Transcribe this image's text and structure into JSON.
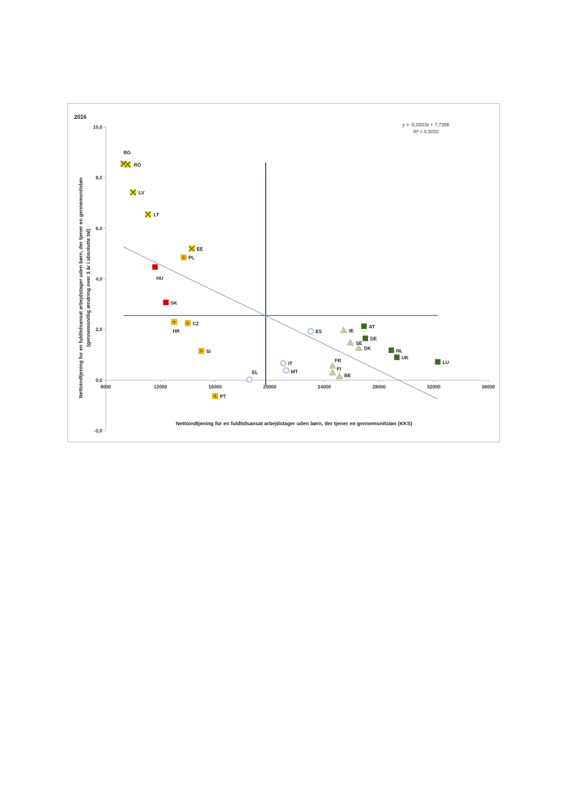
{
  "chart_data": {
    "type": "scatter",
    "title": "2016",
    "xlabel": "Nettoindtjening for en fuldtidsansat arbejdstager uden børn, der tjener en gennemsnitsløn (KKS)",
    "ylabel_line1": "Nettoindtjening for en fuldtidsansat arbejdstager uden børn, der tjener en gennemsnitsløn",
    "ylabel_line2": "(gennemsnitlig ændring over 3 år i absolutte tal)",
    "xlim": [
      8000,
      36000
    ],
    "ylim": [
      -2,
      10
    ],
    "x_ticks": [
      "8000",
      "12000",
      "16000",
      "20000",
      "24000",
      "28000",
      "32000",
      "36000"
    ],
    "y_ticks": [
      "10,0",
      "8,0",
      "6,0",
      "4,0",
      "2,0",
      "0,0",
      "-2,0"
    ],
    "grid": false,
    "equation": "y = -0,0003x + 7,7356",
    "r_squared": "R² = 0,5032",
    "trendline": {
      "x": [
        9300,
        32300
      ],
      "y": [
        5.26,
        -0.75
      ]
    },
    "reference_lines": {
      "vertical_x": 19700,
      "vertical_y": [
        -0.2,
        8.6
      ],
      "horizontal_y": 2.55,
      "horizontal_x": [
        9300,
        32300
      ]
    },
    "colors": {
      "yellow_cross": "#f0e000",
      "orange_plus": "#f5b800",
      "red": "#e00000",
      "circle": "#6f97c8",
      "triangle": "#c5c9a8",
      "dark_green": "#3f6a25",
      "ref_line": "#1f4e8a",
      "trend_line": "#8890a0"
    },
    "points": [
      {
        "label": "BG",
        "x": 9300,
        "y": 8.55,
        "marker": "yellow_cross",
        "lx": 0,
        "ly": -14,
        "anchor": "start"
      },
      {
        "label": "RO",
        "x": 9600,
        "y": 8.52,
        "marker": "yellow_cross",
        "lx": 9,
        "ly": 3,
        "anchor": "start"
      },
      {
        "label": "LV",
        "x": 10000,
        "y": 7.42,
        "marker": "yellow_cross",
        "lx": 8,
        "ly": 3,
        "anchor": "start"
      },
      {
        "label": "LT",
        "x": 11100,
        "y": 6.55,
        "marker": "yellow_cross",
        "lx": 8,
        "ly": 3,
        "anchor": "start"
      },
      {
        "label": "EE",
        "x": 14300,
        "y": 5.2,
        "marker": "yellow_cross",
        "lx": 7,
        "ly": 3,
        "anchor": "start"
      },
      {
        "label": "PL",
        "x": 13700,
        "y": 4.85,
        "marker": "orange_plus",
        "lx": 7,
        "ly": 3,
        "anchor": "start"
      },
      {
        "label": "HU",
        "x": 11600,
        "y": 4.47,
        "marker": "red",
        "lx": 2,
        "ly": 19,
        "anchor": "start"
      },
      {
        "label": "SK",
        "x": 12400,
        "y": 3.07,
        "marker": "red",
        "lx": 7,
        "ly": 3,
        "anchor": "start"
      },
      {
        "label": "HR",
        "x": 13000,
        "y": 2.3,
        "marker": "orange_plus",
        "lx": -2,
        "ly": 16,
        "anchor": "start"
      },
      {
        "label": "CZ",
        "x": 14000,
        "y": 2.25,
        "marker": "orange_plus",
        "lx": 7,
        "ly": 3,
        "anchor": "start"
      },
      {
        "label": "SI",
        "x": 15000,
        "y": 1.15,
        "marker": "orange_plus",
        "lx": 7,
        "ly": 3,
        "anchor": "start"
      },
      {
        "label": "PT",
        "x": 16000,
        "y": -0.63,
        "marker": "orange_plus",
        "lx": 7,
        "ly": 3,
        "anchor": "start"
      },
      {
        "label": "EL",
        "x": 18500,
        "y": 0.02,
        "marker": "circle",
        "lx": 4,
        "ly": -8,
        "anchor": "start"
      },
      {
        "label": "IT",
        "x": 21000,
        "y": 0.67,
        "marker": "circle",
        "lx": 7,
        "ly": 3,
        "anchor": "start"
      },
      {
        "label": "MT",
        "x": 21200,
        "y": 0.38,
        "marker": "circle",
        "lx": 7,
        "ly": 4,
        "anchor": "start"
      },
      {
        "label": "ES",
        "x": 23000,
        "y": 1.93,
        "marker": "circle",
        "lx": 7,
        "ly": 3,
        "anchor": "start"
      },
      {
        "label": "IE",
        "x": 25400,
        "y": 1.97,
        "marker": "triangle",
        "lx": 8,
        "ly": 3,
        "anchor": "start"
      },
      {
        "label": "SE",
        "x": 25900,
        "y": 1.48,
        "marker": "triangle",
        "lx": 8,
        "ly": 3,
        "anchor": "start"
      },
      {
        "label": "DK",
        "x": 26500,
        "y": 1.27,
        "marker": "triangle",
        "lx": 8,
        "ly": 3,
        "anchor": "start"
      },
      {
        "label": "FR",
        "x": 24600,
        "y": 0.57,
        "marker": "triangle",
        "lx": 3,
        "ly": -5,
        "anchor": "start"
      },
      {
        "label": "FI",
        "x": 24600,
        "y": 0.3,
        "marker": "triangle",
        "lx": 6,
        "ly": -3,
        "anchor": "start"
      },
      {
        "label": "BE",
        "x": 25100,
        "y": 0.15,
        "marker": "triangle",
        "lx": 7,
        "ly": 1,
        "anchor": "start"
      },
      {
        "label": "AT",
        "x": 26900,
        "y": 2.13,
        "marker": "dark_green",
        "lx": 7,
        "ly": 3,
        "anchor": "start"
      },
      {
        "label": "DE",
        "x": 27000,
        "y": 1.65,
        "marker": "dark_green",
        "lx": 7,
        "ly": 3,
        "anchor": "start"
      },
      {
        "label": "NL",
        "x": 28900,
        "y": 1.18,
        "marker": "dark_green",
        "lx": 7,
        "ly": 3,
        "anchor": "start"
      },
      {
        "label": "UK",
        "x": 29300,
        "y": 0.9,
        "marker": "dark_green",
        "lx": 7,
        "ly": 3,
        "anchor": "start"
      },
      {
        "label": "LU",
        "x": 32300,
        "y": 0.72,
        "marker": "dark_green",
        "lx": 7,
        "ly": 3,
        "anchor": "start"
      }
    ]
  }
}
